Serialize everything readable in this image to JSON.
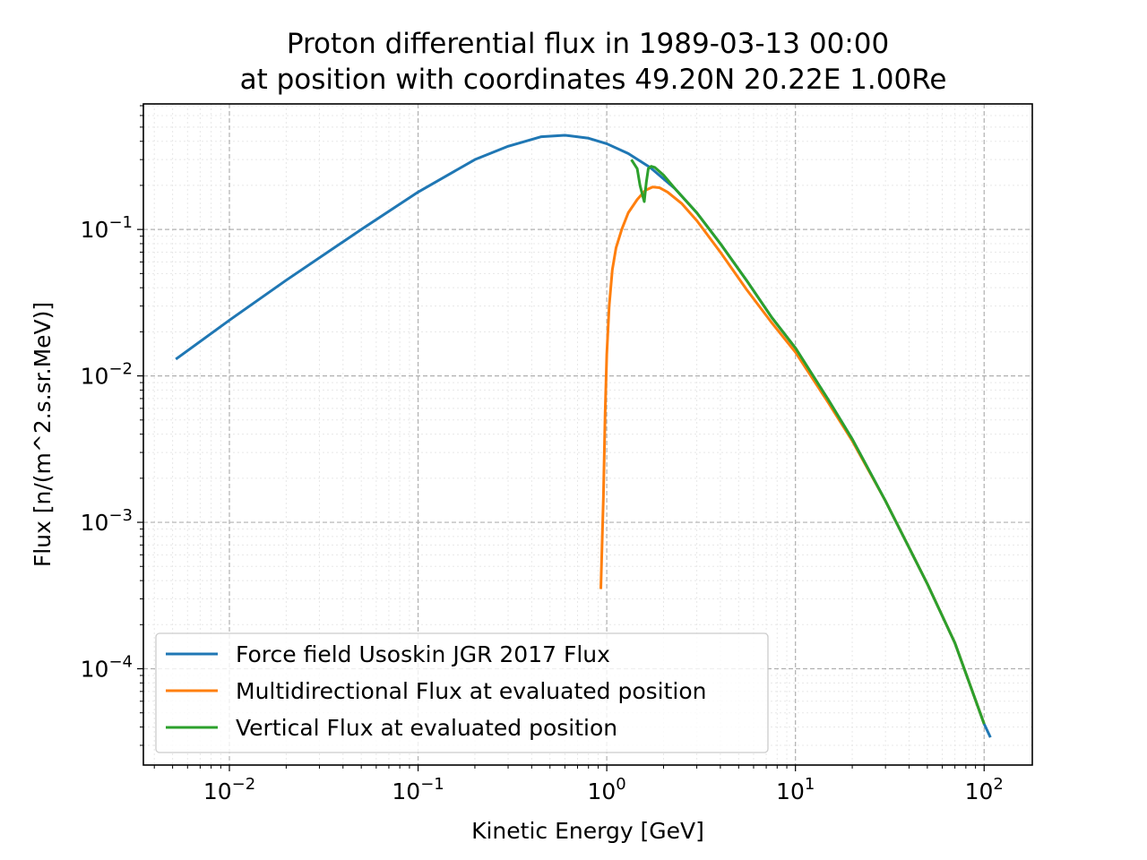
{
  "chart_data": {
    "type": "line",
    "title_line1": "Proton differential flux in 1989-03-13 00:00",
    "title_line2": "at position with coordinates 49.20N 20.22E 1.00Re",
    "xlabel": "Kinetic Energy [GeV]",
    "ylabel": "Flux [n/(m^2.s.sr.MeV)]",
    "xscale": "log",
    "yscale": "log",
    "xlim": [
      0.0035,
      180
    ],
    "ylim": [
      2.2e-05,
      0.72
    ],
    "grid": true,
    "legend_position": "bottom-left",
    "x_ticks": [
      {
        "base": "10",
        "exp": "−2",
        "value": 0.01
      },
      {
        "base": "10",
        "exp": "−1",
        "value": 0.1
      },
      {
        "base": "10",
        "exp": "0",
        "value": 1
      },
      {
        "base": "10",
        "exp": "1",
        "value": 10
      },
      {
        "base": "10",
        "exp": "2",
        "value": 100
      }
    ],
    "y_ticks": [
      {
        "base": "10",
        "exp": "−4",
        "value": 0.0001
      },
      {
        "base": "10",
        "exp": "−3",
        "value": 0.001
      },
      {
        "base": "10",
        "exp": "−2",
        "value": 0.01
      },
      {
        "base": "10",
        "exp": "−1",
        "value": 0.1
      }
    ],
    "series": [
      {
        "name": "Force field Usoskin JGR 2017 Flux",
        "color": "#1f77b4",
        "x": [
          0.0052,
          0.01,
          0.02,
          0.05,
          0.1,
          0.2,
          0.3,
          0.45,
          0.6,
          0.8,
          1.0,
          1.3,
          1.7,
          2.3,
          3.0,
          4.0,
          5.5,
          7.5,
          10,
          15,
          20,
          30,
          50,
          70,
          100,
          108
        ],
        "y": [
          0.013,
          0.024,
          0.045,
          0.1,
          0.18,
          0.3,
          0.37,
          0.43,
          0.44,
          0.42,
          0.385,
          0.33,
          0.265,
          0.19,
          0.13,
          0.08,
          0.045,
          0.025,
          0.0155,
          0.0068,
          0.0037,
          0.0014,
          0.00038,
          0.00015,
          4.2e-05,
          3.4e-05
        ]
      },
      {
        "name": "Multidirectional Flux at evaluated position",
        "color": "#ff7f0e",
        "x": [
          0.93,
          0.96,
          0.98,
          1.0,
          1.03,
          1.07,
          1.12,
          1.2,
          1.3,
          1.45,
          1.6,
          1.75,
          1.9,
          2.1,
          2.5,
          3.0,
          4.0,
          5.5,
          7.5,
          10,
          15,
          20,
          30,
          50,
          70,
          100
        ],
        "y": [
          0.00035,
          0.0015,
          0.0055,
          0.014,
          0.03,
          0.053,
          0.075,
          0.1,
          0.13,
          0.16,
          0.185,
          0.195,
          0.193,
          0.18,
          0.15,
          0.115,
          0.07,
          0.039,
          0.023,
          0.0145,
          0.0065,
          0.0036,
          0.0014,
          0.00038,
          0.00015,
          4.2e-05
        ]
      },
      {
        "name": "Vertical Flux at evaluated position",
        "color": "#2ca02c",
        "x": [
          1.35,
          1.45,
          1.5,
          1.55,
          1.58,
          1.62,
          1.66,
          1.72,
          1.8,
          2.0,
          2.3,
          3.0,
          4.0,
          5.5,
          7.5,
          10,
          15,
          20,
          30,
          50,
          70,
          100
        ],
        "y": [
          0.3,
          0.26,
          0.2,
          0.17,
          0.155,
          0.21,
          0.26,
          0.27,
          0.265,
          0.235,
          0.19,
          0.13,
          0.08,
          0.045,
          0.025,
          0.0155,
          0.0068,
          0.0037,
          0.0014,
          0.00038,
          0.00015,
          4.2e-05
        ]
      }
    ]
  }
}
